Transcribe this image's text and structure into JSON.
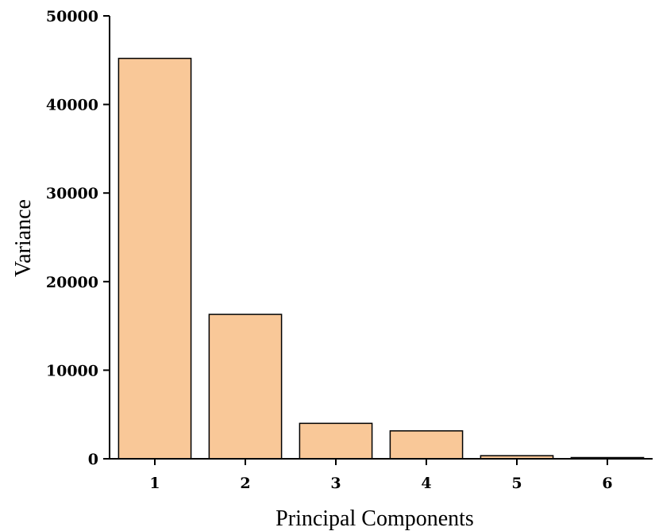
{
  "chart_data": {
    "type": "bar",
    "title": "",
    "xlabel": "Principal Components",
    "ylabel": "Variance",
    "categories": [
      "1",
      "2",
      "3",
      "4",
      "5",
      "6"
    ],
    "values": [
      45200,
      16300,
      4000,
      3150,
      350,
      100
    ],
    "ylim": [
      0,
      50000
    ],
    "yticks": [
      0,
      10000,
      20000,
      30000,
      40000,
      50000
    ],
    "ytick_labels": [
      "0",
      "10000",
      "20000",
      "30000",
      "40000",
      "50000"
    ],
    "grid": false,
    "legend": "none",
    "colors": {
      "bar_fill": "#f9c898",
      "bar_stroke": "#000000",
      "axis": "#000000"
    }
  }
}
